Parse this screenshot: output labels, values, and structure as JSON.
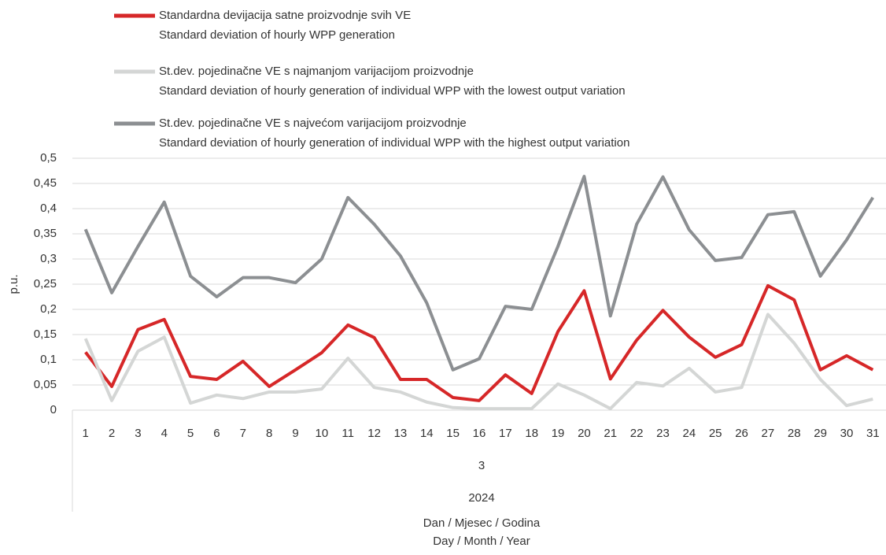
{
  "chart_data": {
    "type": "line",
    "y_label": "p.u.",
    "x_label": [
      "Dan / Mjesec / Godina",
      "Day / Month / Year"
    ],
    "categories": [
      1,
      2,
      3,
      4,
      5,
      6,
      7,
      8,
      9,
      10,
      11,
      12,
      13,
      14,
      15,
      16,
      17,
      18,
      19,
      20,
      21,
      22,
      23,
      24,
      25,
      26,
      27,
      28,
      29,
      30,
      31
    ],
    "month": "3",
    "year": "2024",
    "ylim": [
      0,
      0.5
    ],
    "yticks": [
      0,
      {
        "value": 0.05,
        "label": "0,05"
      },
      {
        "value": 0.1,
        "label": "0,1"
      },
      {
        "value": 0.15,
        "label": "0,15"
      },
      {
        "value": 0.2,
        "label": "0,2"
      },
      {
        "value": 0.25,
        "label": "0,25"
      },
      {
        "value": 0.3,
        "label": "0,3"
      },
      {
        "value": 0.35,
        "label": "0,35"
      },
      {
        "value": 0.4,
        "label": "0,4"
      },
      {
        "value": 0.45,
        "label": "0,45"
      },
      {
        "value": 0.5,
        "label": "0,5"
      }
    ],
    "grid": true,
    "series": [
      {
        "name": "Standardna devijacija satne proizvodnje svih VE",
        "name_en": "Standard deviation of hourly WPP generation",
        "color": "#d62728",
        "values": [
          0.115,
          0.047,
          0.16,
          0.18,
          0.067,
          0.061,
          0.097,
          0.047,
          0.08,
          0.114,
          0.169,
          0.144,
          0.061,
          0.061,
          0.025,
          0.019,
          0.07,
          0.033,
          0.156,
          0.237,
          0.062,
          0.139,
          0.198,
          0.145,
          0.105,
          0.13,
          0.247,
          0.219,
          0.08,
          0.108,
          0.08
        ]
      },
      {
        "name": "St.dev. pojedinačne VE s najmanjom varijacijom proizvodnje",
        "name_en": "Standard deviation of hourly generation of individual WPP with the lowest output variation",
        "color": "#d4d6d5",
        "values": [
          0.142,
          0.019,
          0.117,
          0.145,
          0.014,
          0.03,
          0.023,
          0.036,
          0.036,
          0.042,
          0.103,
          0.045,
          0.036,
          0.016,
          0.005,
          0.003,
          0.003,
          0.003,
          0.052,
          0.03,
          0.003,
          0.055,
          0.048,
          0.083,
          0.036,
          0.045,
          0.19,
          0.133,
          0.061,
          0.009,
          0.022
        ]
      },
      {
        "name": "St.dev. pojedinačne VE s najvećom varijacijom proizvodnje",
        "name_en": "Standard deviation of hourly generation of individual WPP with the highest output variation",
        "color": "#8c8f92",
        "values": [
          0.359,
          0.233,
          0.325,
          0.413,
          0.266,
          0.225,
          0.263,
          0.263,
          0.253,
          0.3,
          0.422,
          0.369,
          0.306,
          0.213,
          0.08,
          0.102,
          0.206,
          0.2,
          0.325,
          0.464,
          0.187,
          0.369,
          0.463,
          0.358,
          0.297,
          0.303,
          0.388,
          0.394,
          0.266,
          0.338,
          0.422
        ]
      }
    ]
  }
}
